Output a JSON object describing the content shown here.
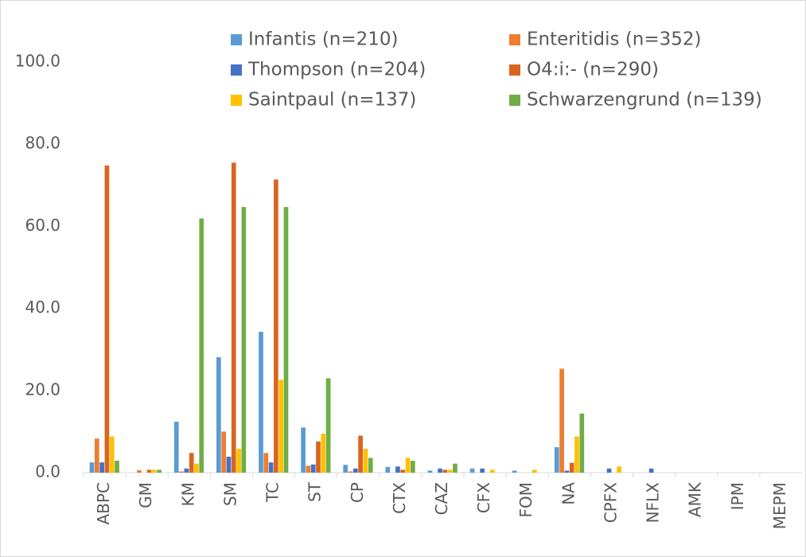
{
  "chart_data": {
    "type": "bar",
    "categories": [
      "ABPC",
      "GM",
      "KM",
      "SM",
      "TC",
      "ST",
      "CP",
      "CTX",
      "CAZ",
      "CFX",
      "FOM",
      "NA",
      "CPFX",
      "NFLX",
      "AMK",
      "IPM",
      "MEPM"
    ],
    "series": [
      {
        "name": "Infantis (n=210)",
        "color": "#5b9bd5",
        "values": [
          2.5,
          0,
          12.4,
          28.1,
          34.3,
          11.0,
          1.9,
          1.4,
          0.5,
          1.0,
          0.5,
          6.2,
          0,
          0,
          0,
          0,
          0
        ]
      },
      {
        "name": "Enteritidis (n=352)",
        "color": "#ed7d31",
        "values": [
          8.3,
          0.6,
          0.3,
          10.0,
          4.8,
          1.7,
          0.3,
          0,
          0,
          0,
          0,
          25.3,
          0,
          0,
          0,
          0,
          0
        ]
      },
      {
        "name": "Thompson (n=204)",
        "color": "#4472c4",
        "values": [
          2.5,
          0,
          1.0,
          3.9,
          2.5,
          2.0,
          1.0,
          1.5,
          1.0,
          1.0,
          0,
          0.5,
          1.0,
          1.0,
          0,
          0,
          0
        ]
      },
      {
        "name": "O4:i:- (n=290)",
        "color": "#d9651f",
        "values": [
          74.8,
          0.7,
          4.8,
          75.5,
          71.4,
          7.6,
          9.0,
          0.7,
          0.7,
          0,
          0,
          2.4,
          0,
          0,
          0,
          0,
          0
        ]
      },
      {
        "name": "Saintpaul (n=137)",
        "color": "#ffc000",
        "values": [
          8.8,
          0.7,
          2.2,
          5.8,
          22.6,
          9.5,
          5.8,
          3.6,
          0.7,
          0.7,
          0.7,
          8.8,
          1.5,
          0,
          0,
          0,
          0
        ]
      },
      {
        "name": "Schwarzengrund (n=139)",
        "color": "#70ad47",
        "values": [
          2.9,
          0.7,
          61.9,
          64.7,
          64.7,
          23.0,
          3.6,
          2.9,
          2.2,
          0,
          0,
          14.4,
          0,
          0,
          0,
          0,
          0
        ]
      }
    ],
    "ylim": [
      0,
      100
    ],
    "yticks": [
      {
        "value": 0,
        "label": "0.0"
      },
      {
        "value": 20,
        "label": "20.0"
      },
      {
        "value": 40,
        "label": "40.0"
      },
      {
        "value": 60,
        "label": "60.0"
      },
      {
        "value": 80,
        "label": "80.0"
      },
      {
        "value": 100,
        "label": "100.0"
      }
    ],
    "legend": "top-right"
  }
}
